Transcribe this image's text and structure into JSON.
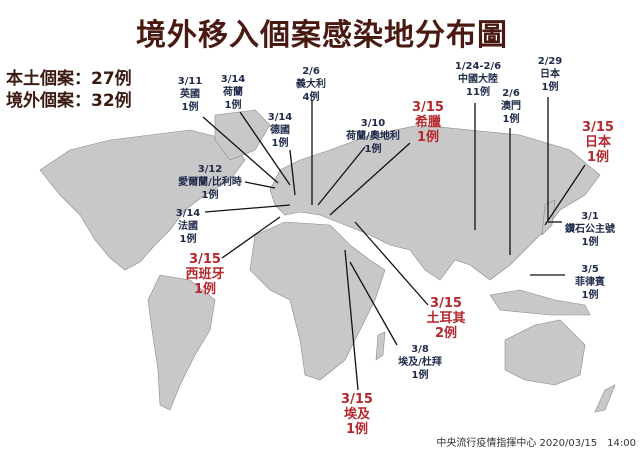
{
  "title": "境外移入個案感染地分布圖",
  "summary": {
    "local": "本土個案：27例",
    "imported": "境外個案：32例"
  },
  "colors": {
    "title": "#4a1a12",
    "normal_label": "#1f2a4a",
    "new_label": "#b5282d",
    "land": "#c8c8c8",
    "leader_line": "#111111"
  },
  "labels": [
    {
      "id": "uk",
      "date": "3/11",
      "place": "英國",
      "count": "1例",
      "new": false
    },
    {
      "id": "nl",
      "date": "3/14",
      "place": "荷蘭",
      "count": "1例",
      "new": false
    },
    {
      "id": "de",
      "date": "3/14",
      "place": "德國",
      "count": "1例",
      "new": false
    },
    {
      "id": "it",
      "date": "2/6",
      "place": "義大利",
      "count": "4例",
      "new": false
    },
    {
      "id": "nlat",
      "date": "3/10",
      "place": "荷蘭/奧地利",
      "count": "1例",
      "new": false
    },
    {
      "id": "gr",
      "date": "3/15",
      "place": "希臘",
      "count": "1例",
      "new": true
    },
    {
      "id": "cn",
      "date": "1/24-2/6",
      "place": "中國大陸",
      "count": "11例",
      "new": false
    },
    {
      "id": "mo",
      "date": "2/6",
      "place": "澳門",
      "count": "1例",
      "new": false
    },
    {
      "id": "jp1",
      "date": "2/29",
      "place": "日本",
      "count": "1例",
      "new": false
    },
    {
      "id": "jp2",
      "date": "3/15",
      "place": "日本",
      "count": "1例",
      "new": true
    },
    {
      "id": "dp",
      "date": "3/1",
      "place": "鑽石公主號",
      "count": "1例",
      "new": false
    },
    {
      "id": "ph",
      "date": "3/5",
      "place": "菲律賓",
      "count": "1例",
      "new": false
    },
    {
      "id": "iebe",
      "date": "3/12",
      "place": "愛爾蘭/比利時",
      "count": "1例",
      "new": false
    },
    {
      "id": "fr",
      "date": "3/14",
      "place": "法國",
      "count": "1例",
      "new": false
    },
    {
      "id": "es",
      "date": "3/15",
      "place": "西班牙",
      "count": "1例",
      "new": true
    },
    {
      "id": "tr",
      "date": "3/15",
      "place": "土耳其",
      "count": "2例",
      "new": true
    },
    {
      "id": "egae",
      "date": "3/8",
      "place": "埃及/杜拜",
      "count": "1例",
      "new": false
    },
    {
      "id": "eg",
      "date": "3/15",
      "place": "埃及",
      "count": "1例",
      "new": true
    }
  ],
  "footer": "中央流行疫情指揮中心 2020/03/15　14:00"
}
